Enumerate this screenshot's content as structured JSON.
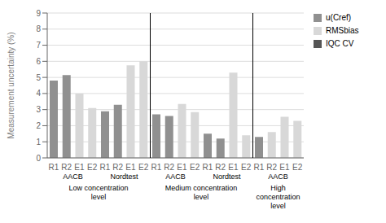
{
  "chart_data": {
    "type": "bar",
    "categories": [
      "R1",
      "R2",
      "E1",
      "E2",
      "R1",
      "R2",
      "E1",
      "E2",
      "R1",
      "R2",
      "E1",
      "E2",
      "R1",
      "R2",
      "E1",
      "E2",
      "R1",
      "R2",
      "E1",
      "E2"
    ],
    "series": [
      {
        "name": "u(Cref)",
        "color": "#909090",
        "values": [
          4.8,
          5.15,
          0,
          0,
          2.9,
          3.3,
          0,
          0,
          2.7,
          2.6,
          0,
          0,
          1.5,
          1.2,
          0,
          0,
          1.3,
          0,
          0,
          0
        ]
      },
      {
        "name": "RMSbias",
        "color": "#d8d8d8",
        "values": [
          0,
          0,
          4.0,
          3.1,
          0,
          0,
          5.75,
          6.0,
          0,
          0,
          3.35,
          2.85,
          0,
          0,
          5.3,
          1.4,
          0,
          1.6,
          2.55,
          2.3
        ]
      },
      {
        "name": "IQC CV",
        "color": "#555555",
        "values": [
          null,
          null,
          null,
          null,
          null,
          null,
          null,
          null,
          null,
          null,
          null,
          null,
          null,
          null,
          null,
          null,
          null,
          null,
          null,
          null
        ]
      }
    ],
    "ylabel": "Measurement uncertainty (%)",
    "ylim": [
      0,
      9
    ],
    "yticks": [
      0,
      1,
      2,
      3,
      4,
      5,
      6,
      7,
      8,
      9
    ],
    "grid": true,
    "legend": "right",
    "subgroup_labels": [
      {
        "text": "AACB",
        "x": 2.5
      },
      {
        "text": "Nordtest",
        "x": 6.5
      },
      {
        "text": "AACB",
        "x": 10.5
      },
      {
        "text": "Nordtest",
        "x": 14.5
      },
      {
        "text": "AACB",
        "x": 18.5
      }
    ],
    "group_labels": [
      {
        "text": "Low concentration\nlevel",
        "x": 4.5
      },
      {
        "text": "Medium concentration\nlevel",
        "x": 12.5
      },
      {
        "text": "High\nconcentration\nlevel",
        "x": 18.5
      }
    ],
    "dividers": [
      8.5,
      16.5
    ]
  }
}
